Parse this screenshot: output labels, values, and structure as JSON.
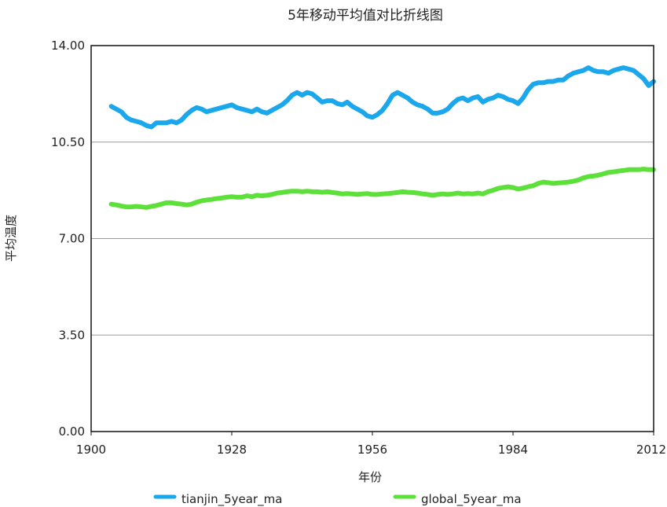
{
  "chart_data": {
    "type": "line",
    "title": "5年移动平均值对比折线图",
    "xlabel": "年份",
    "ylabel": "平均温度",
    "xlim": [
      1900,
      2012
    ],
    "ylim": [
      0,
      14
    ],
    "x_ticks": [
      "1900",
      "1928",
      "1956",
      "1984",
      "2012"
    ],
    "y_ticks": [
      "0.00",
      "3.50",
      "7.00",
      "10.50",
      "14.00"
    ],
    "x_tick_values": [
      1900,
      1928,
      1956,
      1984,
      2012
    ],
    "y_tick_values": [
      0,
      3.5,
      7,
      10.5,
      14
    ],
    "grid": "horizontal",
    "legend_position": "bottom",
    "series": [
      {
        "name": "tianjin_5year_ma",
        "color": "#1aa7ec",
        "x": [
          1904,
          1905,
          1906,
          1907,
          1908,
          1909,
          1910,
          1911,
          1912,
          1913,
          1914,
          1915,
          1916,
          1917,
          1918,
          1919,
          1920,
          1921,
          1922,
          1923,
          1924,
          1925,
          1926,
          1927,
          1928,
          1929,
          1930,
          1931,
          1932,
          1933,
          1934,
          1935,
          1936,
          1937,
          1938,
          1939,
          1940,
          1941,
          1942,
          1943,
          1944,
          1945,
          1946,
          1947,
          1948,
          1949,
          1950,
          1951,
          1952,
          1953,
          1954,
          1955,
          1956,
          1957,
          1958,
          1959,
          1960,
          1961,
          1962,
          1963,
          1964,
          1965,
          1966,
          1967,
          1968,
          1969,
          1970,
          1971,
          1972,
          1973,
          1974,
          1975,
          1976,
          1977,
          1978,
          1979,
          1980,
          1981,
          1982,
          1983,
          1984,
          1985,
          1986,
          1987,
          1988,
          1989,
          1990,
          1991,
          1992,
          1993,
          1994,
          1995,
          1996,
          1997,
          1998,
          1999,
          2000,
          2001,
          2002,
          2003,
          2004,
          2005,
          2006,
          2007,
          2008,
          2009,
          2010,
          2011,
          2012
        ],
        "values": [
          11.8,
          11.7,
          11.6,
          11.4,
          11.3,
          11.25,
          11.2,
          11.1,
          11.05,
          11.2,
          11.2,
          11.2,
          11.25,
          11.2,
          11.3,
          11.5,
          11.65,
          11.75,
          11.7,
          11.6,
          11.65,
          11.7,
          11.75,
          11.8,
          11.85,
          11.75,
          11.7,
          11.65,
          11.6,
          11.7,
          11.6,
          11.55,
          11.65,
          11.75,
          11.85,
          12.0,
          12.2,
          12.3,
          12.2,
          12.3,
          12.25,
          12.1,
          11.95,
          12.0,
          12.0,
          11.9,
          11.85,
          11.95,
          11.8,
          11.7,
          11.6,
          11.45,
          11.4,
          11.5,
          11.65,
          11.9,
          12.2,
          12.3,
          12.2,
          12.1,
          11.95,
          11.85,
          11.8,
          11.7,
          11.55,
          11.55,
          11.6,
          11.7,
          11.9,
          12.05,
          12.1,
          12.0,
          12.1,
          12.15,
          11.95,
          12.05,
          12.1,
          12.2,
          12.15,
          12.05,
          12.0,
          11.9,
          12.1,
          12.4,
          12.6,
          12.65,
          12.65,
          12.7,
          12.7,
          12.75,
          12.75,
          12.9,
          13.0,
          13.05,
          13.1,
          13.2,
          13.1,
          13.05,
          13.05,
          13.0,
          13.1,
          13.15,
          13.2,
          13.15,
          13.1,
          12.95,
          12.8,
          12.55,
          12.7
        ]
      },
      {
        "name": "global_5year_ma",
        "color": "#5ee03b",
        "x": [
          1904,
          1905,
          1906,
          1907,
          1908,
          1909,
          1910,
          1911,
          1912,
          1913,
          1914,
          1915,
          1916,
          1917,
          1918,
          1919,
          1920,
          1921,
          1922,
          1923,
          1924,
          1925,
          1926,
          1927,
          1928,
          1929,
          1930,
          1931,
          1932,
          1933,
          1934,
          1935,
          1936,
          1937,
          1938,
          1939,
          1940,
          1941,
          1942,
          1943,
          1944,
          1945,
          1946,
          1947,
          1948,
          1949,
          1950,
          1951,
          1952,
          1953,
          1954,
          1955,
          1956,
          1957,
          1958,
          1959,
          1960,
          1961,
          1962,
          1963,
          1964,
          1965,
          1966,
          1967,
          1968,
          1969,
          1970,
          1971,
          1972,
          1973,
          1974,
          1975,
          1976,
          1977,
          1978,
          1979,
          1980,
          1981,
          1982,
          1983,
          1984,
          1985,
          1986,
          1987,
          1988,
          1989,
          1990,
          1991,
          1992,
          1993,
          1994,
          1995,
          1996,
          1997,
          1998,
          1999,
          2000,
          2001,
          2002,
          2003,
          2004,
          2005,
          2006,
          2007,
          2008,
          2009,
          2010,
          2011,
          2012
        ],
        "values": [
          8.25,
          8.22,
          8.18,
          8.15,
          8.15,
          8.17,
          8.15,
          8.13,
          8.17,
          8.2,
          8.25,
          8.3,
          8.3,
          8.27,
          8.25,
          8.22,
          8.25,
          8.32,
          8.37,
          8.4,
          8.42,
          8.45,
          8.47,
          8.5,
          8.52,
          8.5,
          8.5,
          8.55,
          8.52,
          8.57,
          8.55,
          8.57,
          8.6,
          8.65,
          8.67,
          8.7,
          8.72,
          8.72,
          8.7,
          8.72,
          8.7,
          8.7,
          8.68,
          8.7,
          8.67,
          8.65,
          8.62,
          8.63,
          8.62,
          8.6,
          8.62,
          8.63,
          8.6,
          8.6,
          8.62,
          8.63,
          8.65,
          8.67,
          8.7,
          8.68,
          8.67,
          8.65,
          8.62,
          8.6,
          8.57,
          8.6,
          8.62,
          8.6,
          8.62,
          8.65,
          8.62,
          8.63,
          8.62,
          8.65,
          8.62,
          8.7,
          8.75,
          8.82,
          8.85,
          8.88,
          8.85,
          8.8,
          8.83,
          8.88,
          8.92,
          9.0,
          9.05,
          9.03,
          9.0,
          9.02,
          9.03,
          9.05,
          9.08,
          9.12,
          9.2,
          9.25,
          9.27,
          9.3,
          9.35,
          9.4,
          9.42,
          9.45,
          9.47,
          9.5,
          9.5,
          9.5,
          9.52,
          9.5,
          9.5
        ]
      }
    ]
  }
}
